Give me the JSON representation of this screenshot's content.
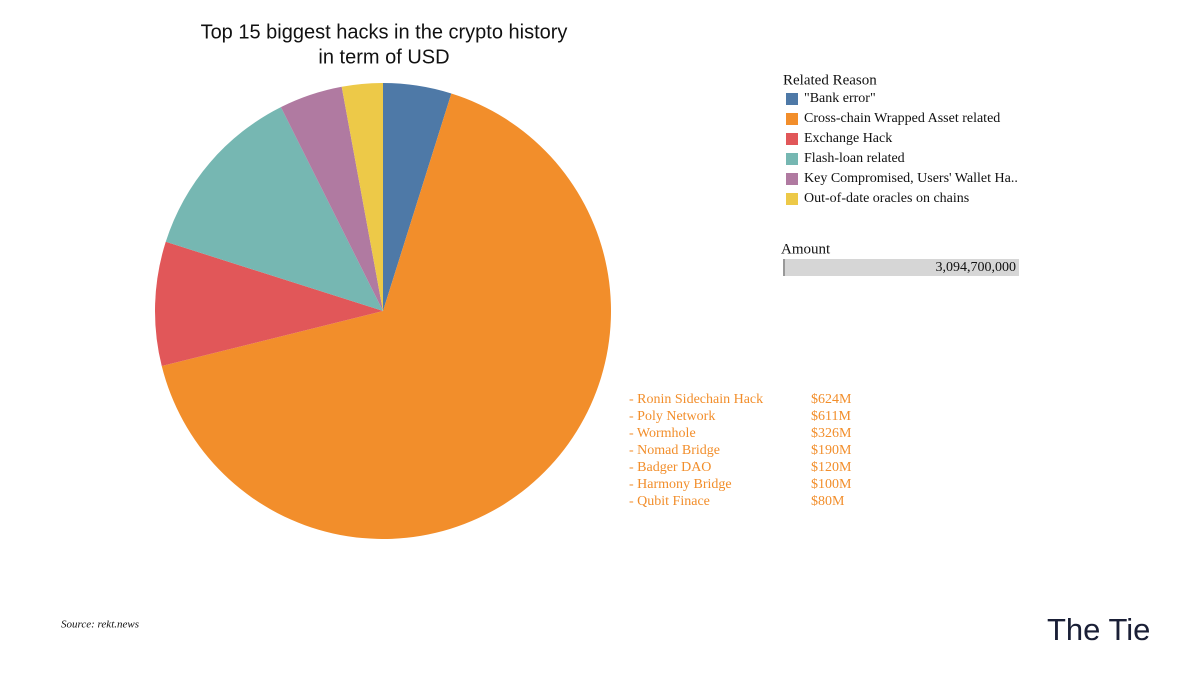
{
  "chart_data": {
    "type": "pie",
    "title": [
      "Top 15 biggest hacks in the crypto history",
      "in term of USD"
    ],
    "legend_title": "Related Reason",
    "categories": [
      "\"Bank error\"",
      "Cross-chain Wrapped Asset related",
      "Exchange Hack",
      "Flash-loan related",
      "Key Compromised, Users' Wallet Ha..",
      "Out-of-date oracles on chains"
    ],
    "values": [
      150000000,
      2051000000,
      272000000,
      393000000,
      139000000,
      89700000
    ],
    "colors": [
      "#4e79a7",
      "#f28e2b",
      "#e15759",
      "#76b7b2",
      "#b07aa1",
      "#edc948"
    ],
    "amount_label": "Amount",
    "amount_total": "3,094,700,000",
    "annotations": [
      [
        "- Ronin Sidechain Hack",
        "$624M"
      ],
      [
        "- Poly Network",
        "$611M"
      ],
      [
        "- Wormhole",
        "$326M"
      ],
      [
        "- Nomad Bridge",
        "$190M"
      ],
      [
        "- Badger DAO",
        "$120M"
      ],
      [
        "- Harmony Bridge",
        "$100M"
      ],
      [
        "- Qubit Finace",
        "$80M"
      ]
    ],
    "source": "Source: rekt.news",
    "logo": "The Tie"
  }
}
